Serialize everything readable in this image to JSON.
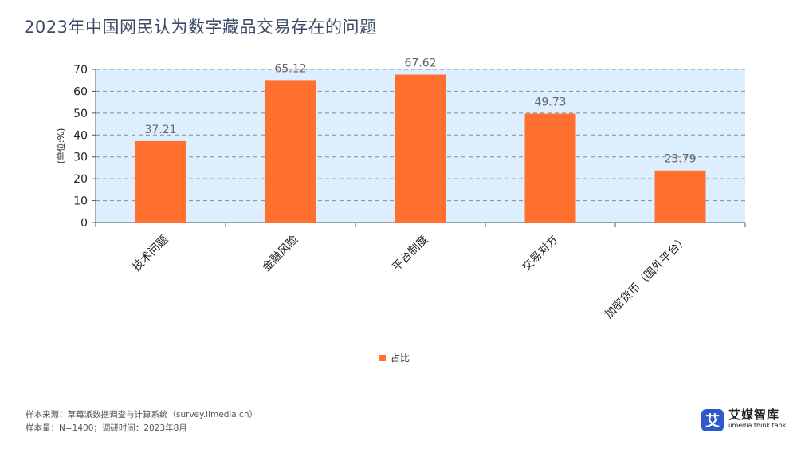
{
  "title": "2023年中国网民认为数字藏品交易存在的问题",
  "chart_data": {
    "type": "bar",
    "categories": [
      "技术问题",
      "金融风险",
      "平台制度",
      "交易对方",
      "加密货币（国外平台）"
    ],
    "series": [
      {
        "name": "占比",
        "values": [
          37.21,
          65.12,
          67.62,
          49.73,
          23.79
        ]
      }
    ],
    "ylabel": "(单位:%)",
    "ylim": [
      0,
      70
    ],
    "yticks": [
      0,
      10,
      20,
      30,
      40,
      50,
      60,
      70
    ],
    "grid": true,
    "legend_position": "bottom"
  },
  "colors": {
    "bar": "#ff6f2e",
    "plot_background": "#ddeeff",
    "grid": "#8a8a8a"
  },
  "source": {
    "line1": "样本来源：草莓派数据调查与计算系统（survey.iimedia.cn）",
    "line2": "样本量：N=1400；调研时间：2023年8月"
  },
  "logo": {
    "mark": "艾",
    "name": "艾媒智库",
    "sub": "iimedia think tank"
  }
}
